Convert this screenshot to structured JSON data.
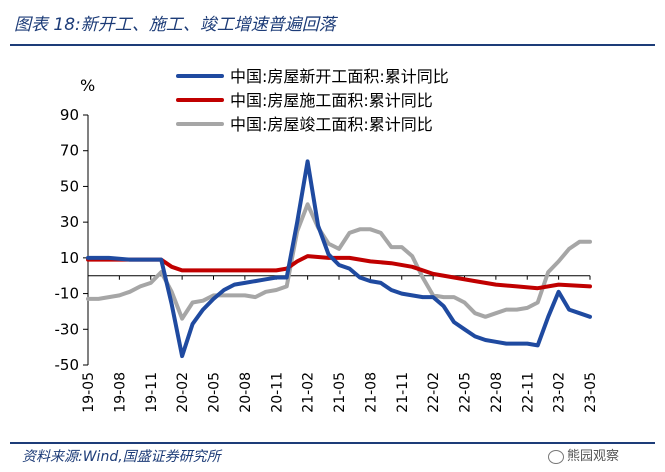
{
  "figure": {
    "title": "图表 18:新开工、施工、竣工增速普遍回落",
    "source": "资料来源:Wind,国盛证券研究所",
    "watermark": "熊园观察"
  },
  "chart_data": {
    "type": "line",
    "ylabel": "%",
    "ylim": [
      -50,
      90
    ],
    "yticks": [
      90,
      70,
      50,
      30,
      10,
      -10,
      -30,
      -50
    ],
    "xlim": [
      "2019-05",
      "2023-05"
    ],
    "xticks": [
      "19-05",
      "19-08",
      "19-11",
      "20-02",
      "20-05",
      "20-08",
      "20-11",
      "21-02",
      "21-05",
      "21-08",
      "21-11",
      "22-02",
      "22-05",
      "22-08",
      "22-11",
      "23-02",
      "23-05"
    ],
    "grid": false,
    "legend_position": "top",
    "series": [
      {
        "name": "中国:房屋新开工面积:累计同比",
        "color": "#1f4aa0",
        "points": [
          [
            "2019-05",
            10
          ],
          [
            "2019-07",
            10
          ],
          [
            "2019-09",
            9
          ],
          [
            "2019-10",
            9
          ],
          [
            "2019-12",
            9
          ],
          [
            "2020-01",
            -16
          ],
          [
            "2020-02",
            -45
          ],
          [
            "2020-03",
            -27
          ],
          [
            "2020-04",
            -19
          ],
          [
            "2020-05",
            -13
          ],
          [
            "2020-06",
            -8
          ],
          [
            "2020-07",
            -5
          ],
          [
            "2020-08",
            -4
          ],
          [
            "2020-09",
            -3
          ],
          [
            "2020-10",
            -2
          ],
          [
            "2020-11",
            -1
          ],
          [
            "2020-12",
            -1
          ],
          [
            "2021-01",
            30
          ],
          [
            "2021-02",
            64
          ],
          [
            "2021-03",
            28
          ],
          [
            "2021-04",
            12
          ],
          [
            "2021-05",
            6
          ],
          [
            "2021-06",
            4
          ],
          [
            "2021-07",
            -1
          ],
          [
            "2021-08",
            -3
          ],
          [
            "2021-09",
            -4
          ],
          [
            "2021-10",
            -8
          ],
          [
            "2021-11",
            -10
          ],
          [
            "2021-12",
            -11
          ],
          [
            "2022-01",
            -12
          ],
          [
            "2022-02",
            -12
          ],
          [
            "2022-03",
            -17
          ],
          [
            "2022-04",
            -26
          ],
          [
            "2022-05",
            -30
          ],
          [
            "2022-06",
            -34
          ],
          [
            "2022-07",
            -36
          ],
          [
            "2022-08",
            -37
          ],
          [
            "2022-09",
            -38
          ],
          [
            "2022-10",
            -38
          ],
          [
            "2022-11",
            -38
          ],
          [
            "2022-12",
            -39
          ],
          [
            "2023-01",
            -23
          ],
          [
            "2023-02",
            -9
          ],
          [
            "2023-03",
            -19
          ],
          [
            "2023-04",
            -21
          ],
          [
            "2023-05",
            -23
          ]
        ]
      },
      {
        "name": "中国:房屋施工面积:累计同比",
        "color": "#c00000",
        "points": [
          [
            "2019-05",
            9
          ],
          [
            "2019-07",
            9
          ],
          [
            "2019-09",
            9
          ],
          [
            "2019-11",
            9
          ],
          [
            "2019-12",
            9
          ],
          [
            "2020-01",
            5
          ],
          [
            "2020-02",
            3
          ],
          [
            "2020-05",
            3
          ],
          [
            "2020-08",
            3
          ],
          [
            "2020-11",
            3
          ],
          [
            "2020-12",
            4
          ],
          [
            "2021-01",
            8
          ],
          [
            "2021-02",
            11
          ],
          [
            "2021-04",
            10
          ],
          [
            "2021-06",
            10
          ],
          [
            "2021-08",
            8
          ],
          [
            "2021-10",
            7
          ],
          [
            "2021-12",
            5
          ],
          [
            "2022-02",
            1
          ],
          [
            "2022-04",
            -1
          ],
          [
            "2022-06",
            -3
          ],
          [
            "2022-08",
            -5
          ],
          [
            "2022-10",
            -6
          ],
          [
            "2022-12",
            -7
          ],
          [
            "2023-02",
            -5
          ],
          [
            "2023-05",
            -6
          ]
        ]
      },
      {
        "name": "中国:房屋竣工面积:累计同比",
        "color": "#a6a6a6",
        "points": [
          [
            "2019-05",
            -13
          ],
          [
            "2019-06",
            -13
          ],
          [
            "2019-08",
            -11
          ],
          [
            "2019-09",
            -9
          ],
          [
            "2019-10",
            -6
          ],
          [
            "2019-11",
            -4
          ],
          [
            "2019-12",
            2
          ],
          [
            "2020-01",
            -9
          ],
          [
            "2020-02",
            -24
          ],
          [
            "2020-03",
            -15
          ],
          [
            "2020-04",
            -14
          ],
          [
            "2020-05",
            -11
          ],
          [
            "2020-06",
            -11
          ],
          [
            "2020-07",
            -11
          ],
          [
            "2020-08",
            -11
          ],
          [
            "2020-09",
            -12
          ],
          [
            "2020-10",
            -9
          ],
          [
            "2020-11",
            -8
          ],
          [
            "2020-12",
            -6
          ],
          [
            "2021-01",
            25
          ],
          [
            "2021-02",
            40
          ],
          [
            "2021-03",
            27
          ],
          [
            "2021-04",
            18
          ],
          [
            "2021-05",
            15
          ],
          [
            "2021-06",
            24
          ],
          [
            "2021-07",
            26
          ],
          [
            "2021-08",
            26
          ],
          [
            "2021-09",
            24
          ],
          [
            "2021-10",
            16
          ],
          [
            "2021-11",
            16
          ],
          [
            "2021-12",
            11
          ],
          [
            "2022-01",
            -1
          ],
          [
            "2022-02",
            -11
          ],
          [
            "2022-03",
            -12
          ],
          [
            "2022-04",
            -12
          ],
          [
            "2022-05",
            -15
          ],
          [
            "2022-06",
            -21
          ],
          [
            "2022-07",
            -23
          ],
          [
            "2022-08",
            -21
          ],
          [
            "2022-09",
            -19
          ],
          [
            "2022-10",
            -19
          ],
          [
            "2022-11",
            -18
          ],
          [
            "2022-12",
            -15
          ],
          [
            "2023-01",
            2
          ],
          [
            "2023-02",
            8
          ],
          [
            "2023-03",
            15
          ],
          [
            "2023-04",
            19
          ],
          [
            "2023-05",
            19
          ]
        ]
      }
    ]
  }
}
